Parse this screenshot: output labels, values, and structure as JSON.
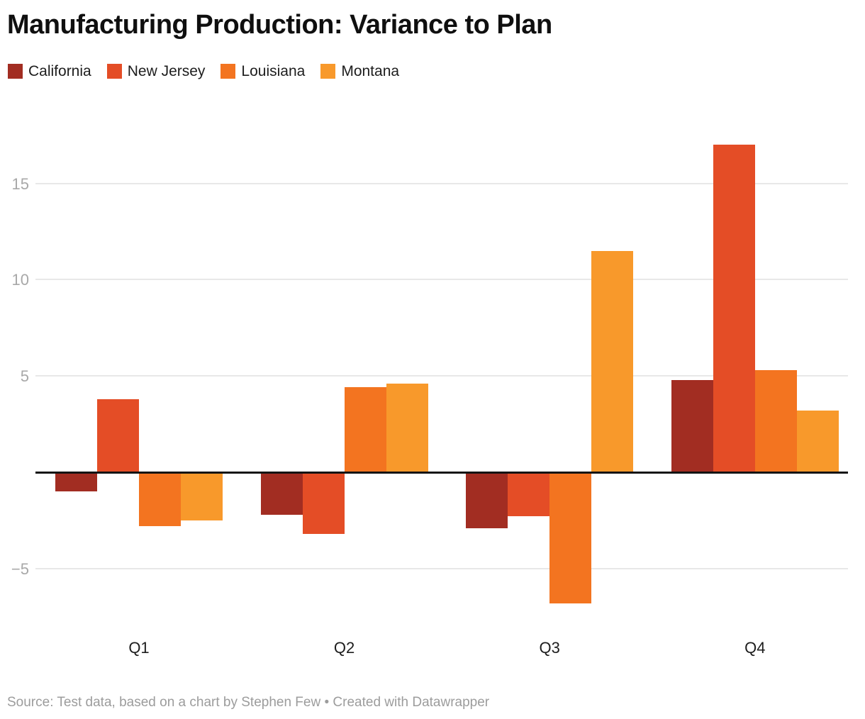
{
  "title": "Manufacturing Production: Variance to Plan",
  "footer": {
    "text": "Source: Test data, based on a chart by Stephen Few • Created with Datawrapper"
  },
  "chart_data": {
    "type": "bar",
    "title": "Manufacturing Production: Variance to Plan",
    "categories": [
      "Q1",
      "Q2",
      "Q3",
      "Q4"
    ],
    "series": [
      {
        "name": "California",
        "color": "#a22d22",
        "values": [
          -1.0,
          -2.2,
          -2.9,
          4.8
        ]
      },
      {
        "name": "New Jersey",
        "color": "#e44d26",
        "values": [
          3.8,
          -3.2,
          -2.3,
          17.0
        ]
      },
      {
        "name": "Louisiana",
        "color": "#f37420",
        "values": [
          -2.8,
          4.4,
          -6.8,
          5.3
        ]
      },
      {
        "name": "Montana",
        "color": "#f8992b",
        "values": [
          -2.5,
          4.6,
          11.5,
          3.2
        ]
      }
    ],
    "xlabel": "",
    "ylabel": "",
    "yticks": [
      15,
      10,
      5,
      -5
    ],
    "baseline": 0,
    "ylim": [
      -8.5,
      18
    ],
    "grid": true,
    "legend_position": "top-left",
    "colors": {
      "grid": "#e8e8e8",
      "zero_line": "#141414",
      "tick_label": "#a8a8a8",
      "category_label": "#1d1d1d",
      "text": "#0f0f0f"
    }
  }
}
